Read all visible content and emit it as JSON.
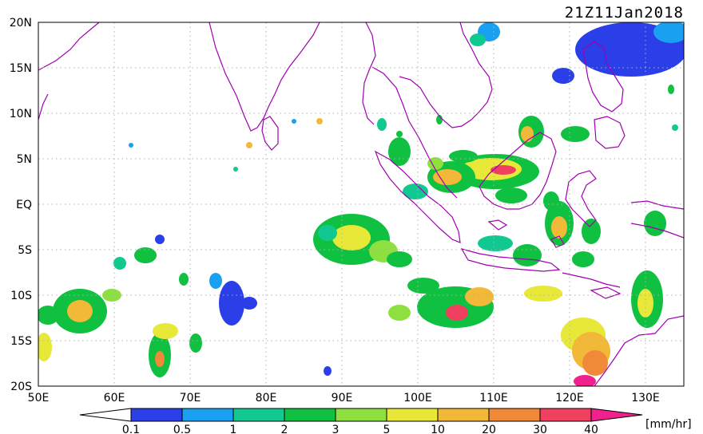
{
  "title": "21Z11Jan2018",
  "lat_labels": [
    "20N",
    "15N",
    "10N",
    "5N",
    "EQ",
    "5S",
    "10S",
    "15S",
    "20S"
  ],
  "lon_labels": [
    "50E",
    "60E",
    "70E",
    "80E",
    "90E",
    "100E",
    "110E",
    "120E",
    "130E"
  ],
  "colorbar": {
    "unit": "[mm/hr]",
    "ticks": [
      "0.1",
      "0.5",
      "1",
      "2",
      "3",
      "5",
      "10",
      "20",
      "30",
      "40"
    ],
    "colors": [
      "#2a3fe8",
      "#1aa0f0",
      "#10c890",
      "#10c040",
      "#8ee040",
      "#e8e838",
      "#f2b838",
      "#f08a38",
      "#f04060"
    ],
    "over_color": "#f0208c",
    "under_color": "#ffffff"
  },
  "coast_color": "#a000b0",
  "grid_color": "#b0b0b0"
}
